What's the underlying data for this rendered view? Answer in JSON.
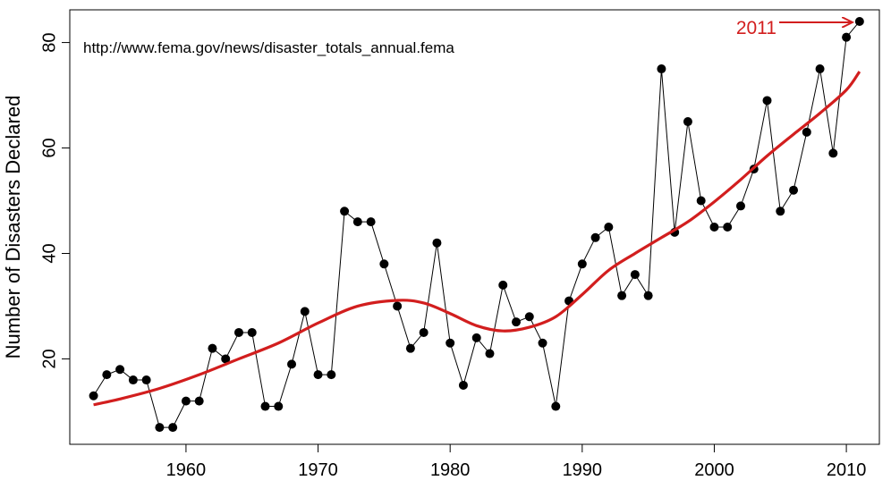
{
  "chart_data": {
    "type": "line",
    "title": "",
    "xlabel": "",
    "ylabel": "Number of Disasters Declared",
    "source_note": "http://www.fema.gov/news/disaster_totals_annual.fema",
    "xlim": [
      1951.2,
      2012.5
    ],
    "ylim": [
      3.8,
      86.2
    ],
    "grid": false,
    "x_ticks": [
      1960,
      1970,
      1980,
      1990,
      2000,
      2010
    ],
    "y_ticks": [
      20,
      40,
      60,
      80
    ],
    "series": [
      {
        "color": "#000000",
        "marker": "filled-circle",
        "points": [
          [
            1953,
            13
          ],
          [
            1954,
            17
          ],
          [
            1955,
            18
          ],
          [
            1956,
            16
          ],
          [
            1957,
            16
          ],
          [
            1958,
            7
          ],
          [
            1959,
            7
          ],
          [
            1960,
            12
          ],
          [
            1961,
            12
          ],
          [
            1962,
            22
          ],
          [
            1963,
            20
          ],
          [
            1964,
            25
          ],
          [
            1965,
            25
          ],
          [
            1966,
            11
          ],
          [
            1967,
            11
          ],
          [
            1968,
            19
          ],
          [
            1969,
            29
          ],
          [
            1970,
            17
          ],
          [
            1971,
            17
          ],
          [
            1972,
            48
          ],
          [
            1973,
            46
          ],
          [
            1974,
            46
          ],
          [
            1975,
            38
          ],
          [
            1976,
            30
          ],
          [
            1977,
            22
          ],
          [
            1978,
            25
          ],
          [
            1979,
            42
          ],
          [
            1980,
            23
          ],
          [
            1981,
            15
          ],
          [
            1982,
            24
          ],
          [
            1983,
            21
          ],
          [
            1984,
            34
          ],
          [
            1985,
            27
          ],
          [
            1986,
            28
          ],
          [
            1987,
            23
          ],
          [
            1988,
            11
          ],
          [
            1989,
            31
          ],
          [
            1990,
            38
          ],
          [
            1991,
            43
          ],
          [
            1992,
            45
          ],
          [
            1993,
            32
          ],
          [
            1994,
            36
          ],
          [
            1995,
            32
          ],
          [
            1996,
            75
          ],
          [
            1997,
            44
          ],
          [
            1998,
            65
          ],
          [
            1999,
            50
          ],
          [
            2000,
            45
          ],
          [
            2001,
            45
          ],
          [
            2002,
            49
          ],
          [
            2003,
            56
          ],
          [
            2004,
            69
          ],
          [
            2005,
            48
          ],
          [
            2006,
            52
          ],
          [
            2007,
            63
          ],
          [
            2008,
            75
          ],
          [
            2009,
            59
          ],
          [
            2010,
            81
          ],
          [
            2011,
            84
          ]
        ]
      },
      {
        "color": "#d21e1e",
        "marker": "none",
        "smooth": true,
        "points": [
          [
            1953,
            11.3
          ],
          [
            1955,
            12.4
          ],
          [
            1958,
            14.4
          ],
          [
            1961,
            17.0
          ],
          [
            1964,
            20.0
          ],
          [
            1967,
            23.0
          ],
          [
            1970,
            26.8
          ],
          [
            1973,
            30.0
          ],
          [
            1976,
            31.1
          ],
          [
            1978,
            30.6
          ],
          [
            1980,
            28.6
          ],
          [
            1982,
            26.3
          ],
          [
            1984,
            25.3
          ],
          [
            1986,
            26.0
          ],
          [
            1988,
            28.0
          ],
          [
            1990,
            32.2
          ],
          [
            1992,
            36.8
          ],
          [
            1994,
            40.0
          ],
          [
            1996,
            43.0
          ],
          [
            1998,
            46.0
          ],
          [
            2000,
            49.8
          ],
          [
            2002,
            54.0
          ],
          [
            2004,
            58.5
          ],
          [
            2006,
            62.6
          ],
          [
            2008,
            66.6
          ],
          [
            2010,
            71.0
          ],
          [
            2011,
            74.5
          ]
        ]
      }
    ],
    "annotations": [
      {
        "text": "2011",
        "color": "#d21e1e",
        "arrow_to": [
          2011,
          84
        ]
      }
    ]
  }
}
